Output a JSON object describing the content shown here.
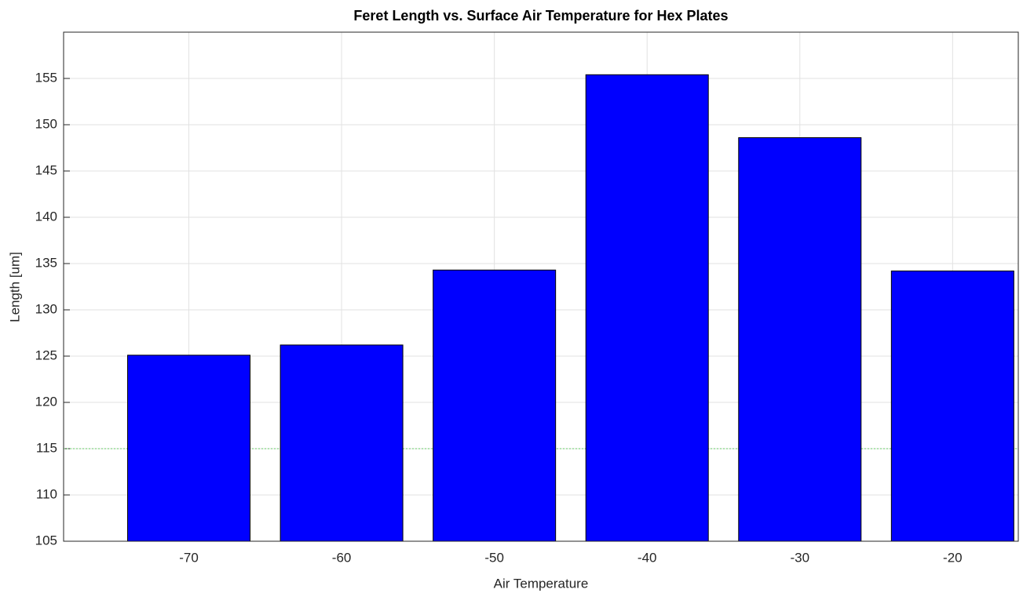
{
  "chart_data": {
    "type": "bar",
    "title": "Feret Length vs. Surface Air Temperature for Hex Plates",
    "x_label": "Air Temperature",
    "y_label": "Length [um]",
    "x": [
      -70,
      -60,
      -50,
      -40,
      -30,
      -20
    ],
    "values": [
      125.1,
      126.2,
      134.3,
      155.4,
      148.6,
      134.2
    ],
    "color": "#0000ff",
    "xlim": [
      -78.2,
      -15.7
    ],
    "xticks": [
      -70,
      -60,
      -50,
      -40,
      -30,
      -20
    ],
    "ylim": [
      105,
      160
    ],
    "yticks": [
      105,
      110,
      115,
      120,
      125,
      130,
      135,
      140,
      145,
      150,
      155
    ],
    "grid": true,
    "reference_line": {
      "value": 115,
      "color": "#66cc66"
    }
  }
}
